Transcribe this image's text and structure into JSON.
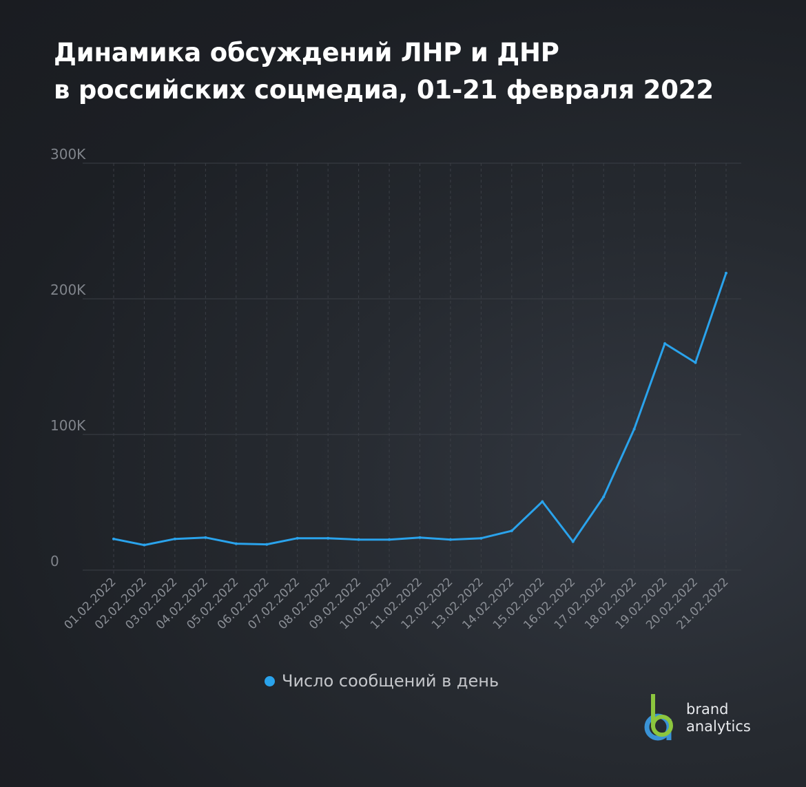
{
  "title": {
    "line1": "Динамика обсуждений ЛНР и ДНР",
    "line2": "в российских соцмедиа, 01-21 февраля 2022"
  },
  "chart_data": {
    "type": "line",
    "title": "Динамика обсуждений ЛНР и ДНР в российских соцмедиа, 01-21 февраля 2022",
    "x": [
      "01.02.2022",
      "02.02.2022",
      "03.02.2022",
      "04.02.2022",
      "05.02.2022",
      "06.02.2022",
      "07.02.2022",
      "08.02.2022",
      "09.02.2022",
      "10.02.2022",
      "11.02.2022",
      "12.02.2022",
      "13.02.2022",
      "14.02.2022",
      "15.02.2022",
      "16.02.2022",
      "17.02.2022",
      "18.02.2022",
      "19.02.2022",
      "20.02.2022",
      "21.02.2022"
    ],
    "yticks": [
      "0",
      "100K",
      "200K",
      "300K"
    ],
    "ylim": [
      0,
      300000
    ],
    "series": [
      {
        "name": "Число сообщений в день",
        "color": "#2aa3ec",
        "values": [
          23000,
          18500,
          23000,
          24000,
          19500,
          19000,
          23500,
          23500,
          22500,
          22500,
          24000,
          22500,
          23500,
          29000,
          50500,
          21000,
          54000,
          104000,
          167000,
          153000,
          219000
        ]
      }
    ],
    "grid": true,
    "legend": "bottom"
  },
  "logo": {
    "line1": "brand",
    "line2": "analytics",
    "colors": {
      "green": "#8cc63e",
      "blue": "#3a93d6"
    }
  }
}
